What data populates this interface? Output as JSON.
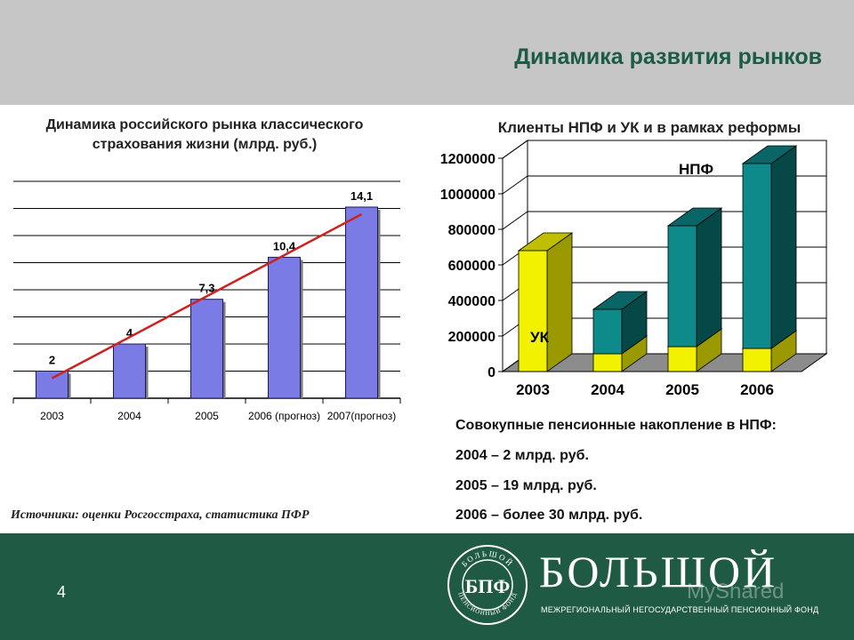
{
  "slide": {
    "title": "Динамика развития рынков",
    "page_number": "4",
    "source": "Источники: оценки Росгосстраха, статистика ПФР",
    "notes": [
      "Совокупные пенсионные накопление в НПФ:",
      "2004 – 2 млрд. руб.",
      "2005 – 19 млрд. руб.",
      "2006 – более 30 млрд. руб."
    ],
    "logo": {
      "name": "БОЛЬШОЙ",
      "subtitle": "МЕЖРЕГИОНАЛЬНЫЙ НЕГОСУДАРСТВЕННЫЙ ПЕНСИОННЫЙ ФОНД",
      "emblem_letters": "БПФ",
      "emblem_ring_top": "БОЛЬШОЙ",
      "emblem_ring_bottom": "ПЕНСИОННЫЙ ФОНД"
    },
    "watermark": "MyShared",
    "colors": {
      "header_bg": "#c6c6c6",
      "footer_bg": "#1f5a45",
      "title_color": "#1c5b44",
      "bar_blue": "#7b7be6",
      "trend_red": "#cc2222",
      "npf_teal": "#0e8a8a",
      "uk_yellow": "#f2f200"
    }
  },
  "chart_data": [
    {
      "type": "bar",
      "title": "Динамика российского рынка классического страхования жизни (млрд. руб.)",
      "categories": [
        "2003",
        "2004",
        "2005",
        "2006 (прогноз)",
        "2007(прогноз)"
      ],
      "values": [
        2,
        4,
        7.3,
        10.4,
        14.1
      ],
      "data_labels": [
        "2",
        "4",
        "7,3",
        "10,4",
        "14,1"
      ],
      "ylim": [
        0,
        16
      ],
      "grid": true,
      "trend_line": true
    },
    {
      "type": "bar",
      "stacked": true,
      "title": "Клиенты НПФ и УК и в рамках реформы",
      "categories": [
        "2003",
        "2004",
        "2005",
        "2006"
      ],
      "series": [
        {
          "name": "УК",
          "values": [
            680000,
            100000,
            140000,
            130000
          ]
        },
        {
          "name": "НПФ",
          "values": [
            0,
            250000,
            680000,
            1040000
          ]
        }
      ],
      "ylim": [
        0,
        1200000
      ],
      "yticks": [
        "0",
        "200000",
        "400000",
        "600000",
        "800000",
        "1000000",
        "1200000"
      ]
    }
  ]
}
